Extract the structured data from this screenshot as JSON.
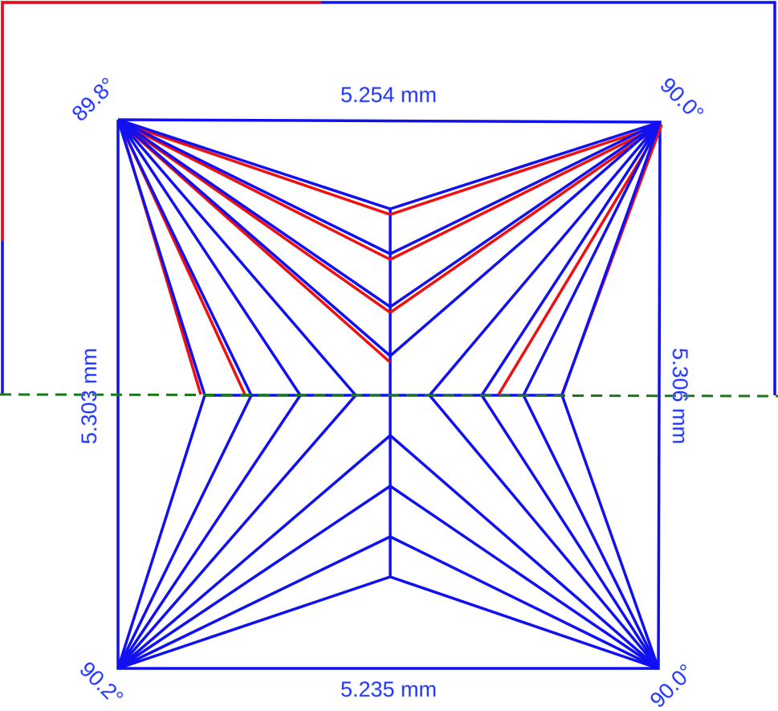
{
  "dimensions": {
    "top": "5.254 mm",
    "bottom": "5.235 mm",
    "left": "5.303 mm",
    "right": "5.306 mm"
  },
  "angles": {
    "top_left": "89.8°",
    "top_right": "90.0°",
    "bottom_left": "90.2°",
    "bottom_right": "90.0°"
  }
}
